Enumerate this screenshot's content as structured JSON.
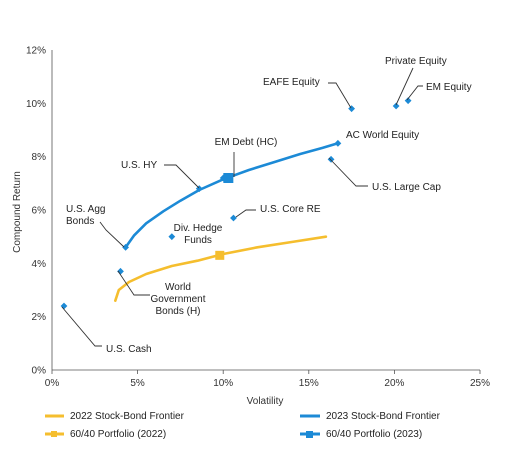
{
  "chart_data": {
    "type": "scatter",
    "title": "",
    "xlabel": "Volatility",
    "ylabel": "Compound Return",
    "xlim": [
      0,
      25
    ],
    "ylim": [
      0,
      12
    ],
    "x_ticks": [
      "0%",
      "5%",
      "10%",
      "15%",
      "20%",
      "25%"
    ],
    "y_ticks": [
      "0%",
      "2%",
      "4%",
      "6%",
      "8%",
      "10%",
      "12%"
    ],
    "grid": false,
    "legend_position": "bottom",
    "colors": {
      "frontier_2022": "#F5BE2E",
      "frontier_2023": "#1C8AD6",
      "assets": "#1C8AD6",
      "portfolio_2022": "#F5BE2E",
      "portfolio_2023": "#1C8AD6"
    },
    "assets": [
      {
        "label": "U.S. Cash",
        "x": 0.7,
        "y": 2.4
      },
      {
        "label": "World Government Bonds (H)",
        "x": 4.0,
        "y": 3.7
      },
      {
        "label": "U.S. Agg Bonds",
        "x": 4.3,
        "y": 4.6
      },
      {
        "label": "Div. Hedge Funds",
        "x": 7.0,
        "y": 5.0
      },
      {
        "label": "U.S. HY",
        "x": 8.6,
        "y": 6.8
      },
      {
        "label": "EM Debt (HC)",
        "x": 10.0,
        "y": 7.2
      },
      {
        "label": "U.S. Core RE",
        "x": 10.6,
        "y": 5.7
      },
      {
        "label": "U.S. Large Cap",
        "x": 16.3,
        "y": 7.9
      },
      {
        "label": "AC World Equity",
        "x": 16.7,
        "y": 8.5
      },
      {
        "label": "EAFE Equity",
        "x": 17.5,
        "y": 9.8
      },
      {
        "label": "Private Equity",
        "x": 20.1,
        "y": 9.9
      },
      {
        "label": "EM Equity",
        "x": 20.8,
        "y": 10.1
      }
    ],
    "series": [
      {
        "name": "2022 Stock-Bond Frontier",
        "type": "line",
        "x": [
          3.7,
          3.9,
          4.5,
          5.5,
          7.0,
          8.5,
          10.0,
          12.0,
          14.0,
          16.0
        ],
        "y": [
          2.6,
          3.0,
          3.3,
          3.6,
          3.9,
          4.1,
          4.35,
          4.6,
          4.8,
          5.0
        ]
      },
      {
        "name": "2023 Stock-Bond Frontier",
        "type": "line",
        "x": [
          4.3,
          4.8,
          5.5,
          6.5,
          7.5,
          8.6,
          10.0,
          11.5,
          13.0,
          14.5,
          15.8,
          16.7
        ],
        "y": [
          4.6,
          5.05,
          5.5,
          5.95,
          6.35,
          6.75,
          7.15,
          7.5,
          7.8,
          8.1,
          8.33,
          8.5
        ]
      },
      {
        "name": "60/40 Portfolio (2022)",
        "type": "scatter",
        "x": [
          9.8
        ],
        "y": [
          4.3
        ]
      },
      {
        "name": "60/40 Portfolio (2023)",
        "type": "scatter",
        "x": [
          10.3
        ],
        "y": [
          7.2
        ]
      }
    ]
  }
}
